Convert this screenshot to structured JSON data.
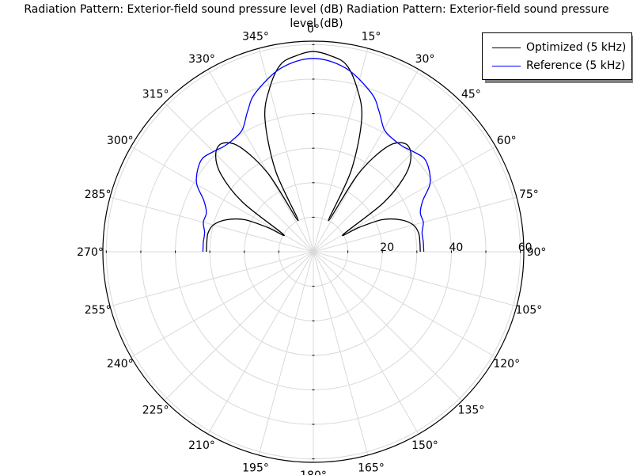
{
  "chart_data": {
    "type": "polar",
    "title_line1": "Radiation Pattern: Exterior-field sound pressure level (dB)  Radiation Pattern: Exterior-field sound pressure",
    "title_line2": "level (dB)",
    "angle_ticks": [
      "0°",
      "15°",
      "30°",
      "45°",
      "60°",
      "75°",
      "90°",
      "105°",
      "120°",
      "135°",
      "150°",
      "165°",
      "180°",
      "195°",
      "210°",
      "225°",
      "240°",
      "255°",
      "270°",
      "285°",
      "300°",
      "315°",
      "330°",
      "345°"
    ],
    "angle_tick_values": [
      0,
      15,
      30,
      45,
      60,
      75,
      90,
      105,
      120,
      135,
      150,
      165,
      180,
      195,
      210,
      225,
      240,
      255,
      270,
      285,
      300,
      315,
      330,
      345
    ],
    "radial_ticks": [
      "20",
      "40",
      "60"
    ],
    "radial_tick_values": [
      20,
      40,
      60
    ],
    "rlim": [
      0,
      61
    ],
    "grid": true,
    "zero_location": "top",
    "direction": "clockwise",
    "legend_position": "top-right",
    "series": [
      {
        "name": "Optimized (5 kHz)",
        "color": "#000000",
        "theta": [
          0,
          5,
          10,
          15,
          20,
          25,
          26,
          30,
          35,
          40,
          45,
          50,
          55,
          60,
          62,
          65,
          70,
          75,
          80,
          85,
          90
        ],
        "r": [
          58,
          57,
          55,
          49,
          41,
          26,
          10,
          26,
          37,
          41,
          40,
          35,
          25,
          10,
          15,
          22,
          27,
          30,
          31,
          31,
          31
        ],
        "mirror": true
      },
      {
        "name": "Reference (5 kHz)",
        "color": "#0000ff",
        "theta": [
          0,
          10,
          20,
          25,
          30,
          35,
          40,
          45,
          50,
          55,
          60,
          65,
          70,
          75,
          80,
          85,
          90
        ],
        "r": [
          56,
          54,
          49,
          45,
          41,
          40,
          40,
          41,
          42,
          41,
          39,
          35,
          33,
          33,
          32,
          32,
          32
        ],
        "mirror": true
      }
    ]
  }
}
